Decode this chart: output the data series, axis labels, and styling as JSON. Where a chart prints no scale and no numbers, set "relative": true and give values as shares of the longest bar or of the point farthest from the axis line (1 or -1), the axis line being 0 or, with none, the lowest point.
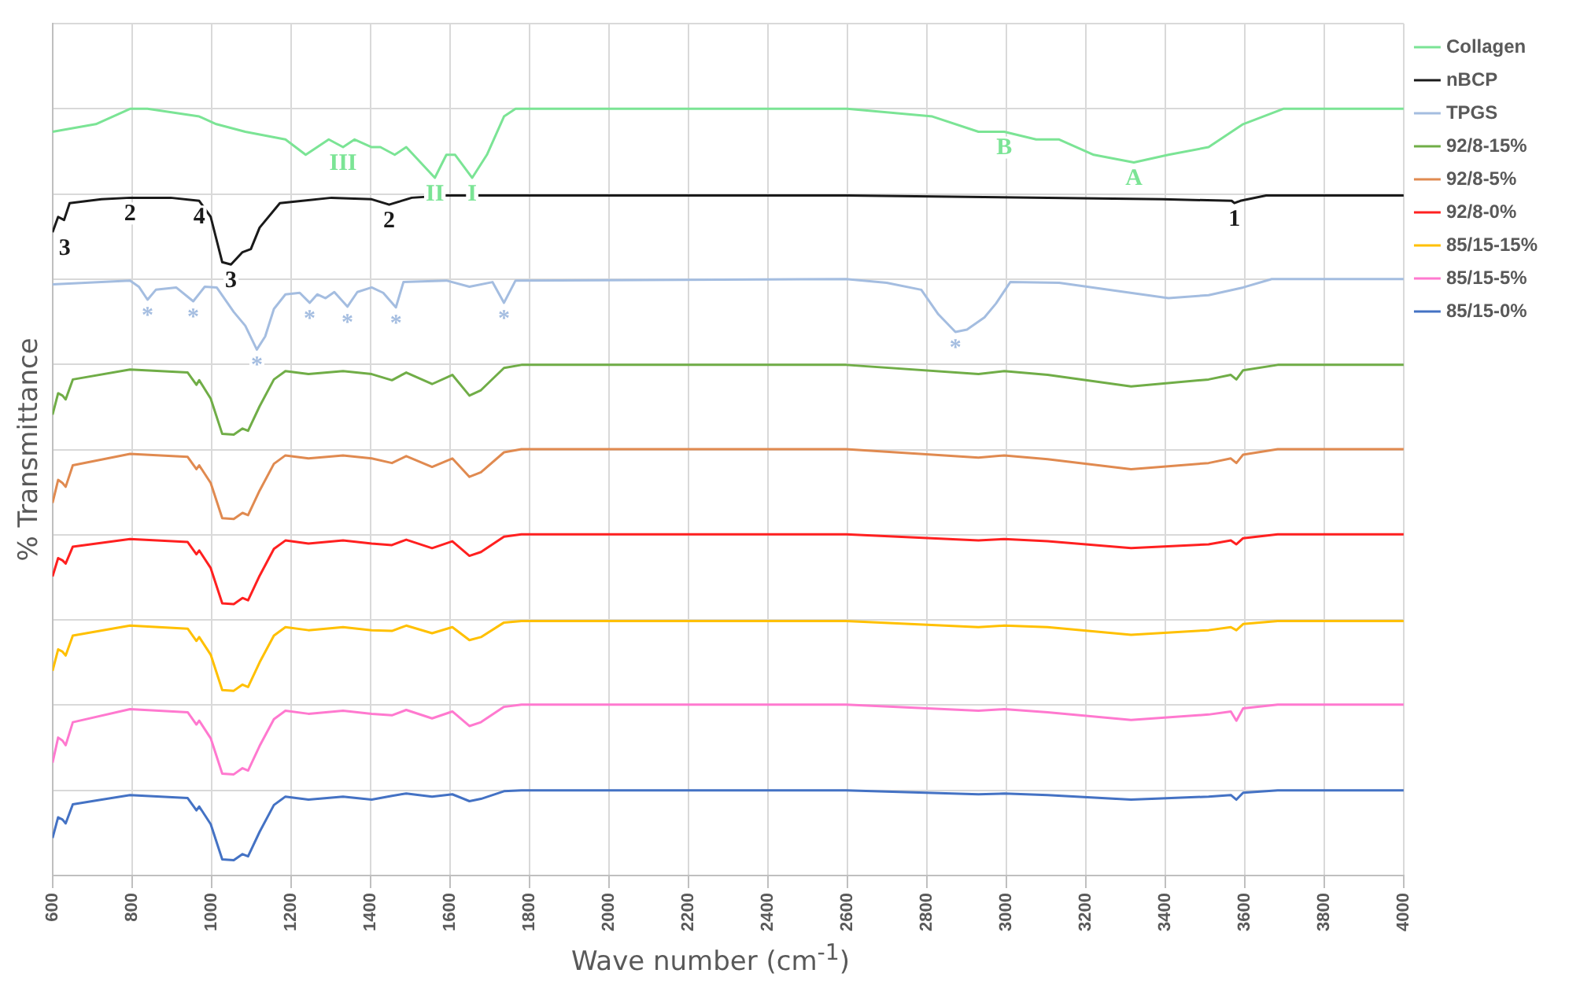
{
  "chart_data": {
    "type": "line",
    "relative": true,
    "xlabel": "Wave number (cm$^{-1}$)",
    "ylabel": "% Transmittance",
    "xlim": [
      600,
      4000
    ],
    "xticks": [
      600,
      800,
      1000,
      1200,
      1400,
      1600,
      1800,
      2000,
      2200,
      2400,
      2600,
      2800,
      3000,
      3200,
      3400,
      3600,
      3800,
      4000
    ],
    "grid": true,
    "legend": "right",
    "marker": "none",
    "line_style": "solid",
    "series": [
      {
        "name": "Collagen",
        "color": "#7be495",
        "x": [
          600,
          709,
          795,
          839,
          969,
          1012,
          1085,
          1186,
          1237,
          1295,
          1331,
          1360,
          1403,
          1425,
          1461,
          1490,
          1562,
          1591,
          1613,
          1656,
          1693,
          1736,
          1765,
          2600,
          2814,
          2930,
          2995,
          3075,
          3133,
          3220,
          3321,
          3408,
          3509,
          3596,
          3697,
          4000
        ],
        "values": [
          0.97,
          0.98,
          1.0,
          1.0,
          0.99,
          0.98,
          0.97,
          0.96,
          0.94,
          0.96,
          0.95,
          0.96,
          0.95,
          0.95,
          0.94,
          0.95,
          0.91,
          0.94,
          0.94,
          0.91,
          0.94,
          0.99,
          1.0,
          1.0,
          0.99,
          0.97,
          0.97,
          0.96,
          0.96,
          0.94,
          0.93,
          0.94,
          0.95,
          0.98,
          1.0,
          1.0
        ]
      },
      {
        "name": "nBCP",
        "color": "#1a1a1a",
        "x": [
          600,
          614,
          629,
          643,
          723,
          795,
          897,
          969,
          998,
          1027,
          1049,
          1078,
          1099,
          1121,
          1172,
          1302,
          1403,
          1447,
          1504,
          1591,
          2600,
          3393,
          3567,
          3574,
          3589,
          3654,
          4000
        ],
        "values": [
          0.839,
          0.859,
          0.855,
          0.877,
          0.882,
          0.884,
          0.884,
          0.88,
          0.859,
          0.8,
          0.797,
          0.813,
          0.817,
          0.845,
          0.877,
          0.884,
          0.882,
          0.875,
          0.884,
          0.887,
          0.887,
          0.882,
          0.88,
          0.877,
          0.88,
          0.887,
          0.887
        ]
      },
      {
        "name": "TPGS",
        "color": "#a4bde0",
        "x": [
          600,
          795,
          817,
          839,
          860,
          911,
          954,
          983,
          1013,
          1056,
          1085,
          1114,
          1135,
          1157,
          1186,
          1222,
          1247,
          1266,
          1287,
          1309,
          1342,
          1367,
          1403,
          1432,
          1464,
          1483,
          1591,
          1649,
          1707,
          1736,
          1765,
          2597,
          2699,
          2786,
          2829,
          2872,
          2901,
          2945,
          2974,
          3010,
          3133,
          3408,
          3509,
          3596,
          3668,
          4000
        ],
        "values": [
          0.771,
          0.776,
          0.768,
          0.751,
          0.764,
          0.767,
          0.749,
          0.768,
          0.767,
          0.735,
          0.717,
          0.686,
          0.703,
          0.739,
          0.758,
          0.76,
          0.747,
          0.758,
          0.753,
          0.761,
          0.742,
          0.761,
          0.767,
          0.76,
          0.741,
          0.774,
          0.776,
          0.768,
          0.774,
          0.747,
          0.776,
          0.778,
          0.773,
          0.764,
          0.732,
          0.709,
          0.712,
          0.728,
          0.746,
          0.774,
          0.773,
          0.753,
          0.757,
          0.767,
          0.778,
          0.778
        ]
      },
      {
        "name": "92/8-15%",
        "color": "#70ad47",
        "x": [
          600,
          614,
          625,
          633,
          651,
          795,
          940,
          962,
          969,
          998,
          1027,
          1056,
          1078,
          1092,
          1121,
          1157,
          1186,
          1244,
          1331,
          1403,
          1454,
          1490,
          1555,
          1606,
          1649,
          1678,
          1736,
          1780,
          2597,
          2930,
          2995,
          3104,
          3314,
          3509,
          3565,
          3579,
          3596,
          3683,
          4000
        ],
        "values": [
          0.601,
          0.629,
          0.626,
          0.621,
          0.647,
          0.66,
          0.656,
          0.64,
          0.646,
          0.622,
          0.576,
          0.575,
          0.583,
          0.58,
          0.612,
          0.647,
          0.658,
          0.654,
          0.658,
          0.654,
          0.646,
          0.656,
          0.641,
          0.653,
          0.626,
          0.633,
          0.662,
          0.666,
          0.666,
          0.654,
          0.658,
          0.653,
          0.638,
          0.647,
          0.653,
          0.647,
          0.659,
          0.666,
          0.666
        ]
      },
      {
        "name": "92/8-5%",
        "color": "#e08a50",
        "x": [
          600,
          614,
          625,
          633,
          651,
          795,
          940,
          962,
          969,
          998,
          1027,
          1056,
          1078,
          1092,
          1121,
          1157,
          1186,
          1244,
          1331,
          1403,
          1454,
          1490,
          1555,
          1606,
          1649,
          1678,
          1736,
          1780,
          2597,
          2930,
          2995,
          3104,
          3314,
          3509,
          3565,
          3579,
          3596,
          3683,
          4000
        ],
        "values": [
          0.486,
          0.516,
          0.512,
          0.507,
          0.535,
          0.55,
          0.546,
          0.53,
          0.535,
          0.512,
          0.466,
          0.465,
          0.473,
          0.47,
          0.502,
          0.537,
          0.548,
          0.544,
          0.548,
          0.544,
          0.538,
          0.547,
          0.533,
          0.544,
          0.52,
          0.526,
          0.552,
          0.556,
          0.556,
          0.545,
          0.548,
          0.543,
          0.53,
          0.538,
          0.544,
          0.538,
          0.549,
          0.556,
          0.556
        ]
      },
      {
        "name": "92/8-0%",
        "color": "#ff2020",
        "x": [
          600,
          614,
          625,
          633,
          651,
          795,
          940,
          962,
          969,
          998,
          1027,
          1056,
          1078,
          1092,
          1121,
          1157,
          1186,
          1244,
          1331,
          1403,
          1454,
          1490,
          1555,
          1606,
          1649,
          1678,
          1736,
          1780,
          2597,
          2930,
          2995,
          3104,
          3314,
          3509,
          3565,
          3579,
          3596,
          3683,
          4000
        ],
        "values": [
          0.39,
          0.414,
          0.411,
          0.407,
          0.429,
          0.439,
          0.435,
          0.419,
          0.424,
          0.401,
          0.355,
          0.354,
          0.362,
          0.359,
          0.391,
          0.426,
          0.437,
          0.433,
          0.437,
          0.433,
          0.431,
          0.438,
          0.427,
          0.436,
          0.417,
          0.422,
          0.442,
          0.445,
          0.445,
          0.437,
          0.439,
          0.436,
          0.427,
          0.432,
          0.437,
          0.432,
          0.44,
          0.445,
          0.445
        ]
      },
      {
        "name": "85/15-15%",
        "color": "#ffc000",
        "x": [
          600,
          614,
          625,
          633,
          651,
          795,
          940,
          962,
          969,
          998,
          1027,
          1056,
          1078,
          1092,
          1121,
          1157,
          1186,
          1244,
          1331,
          1403,
          1454,
          1490,
          1555,
          1606,
          1649,
          1678,
          1736,
          1780,
          2597,
          2930,
          2995,
          3104,
          3314,
          3509,
          3565,
          3579,
          3596,
          3683,
          4000
        ],
        "values": [
          0.267,
          0.295,
          0.292,
          0.287,
          0.313,
          0.326,
          0.322,
          0.306,
          0.311,
          0.288,
          0.242,
          0.241,
          0.249,
          0.246,
          0.278,
          0.313,
          0.324,
          0.32,
          0.324,
          0.32,
          0.319,
          0.326,
          0.316,
          0.324,
          0.307,
          0.311,
          0.33,
          0.332,
          0.332,
          0.324,
          0.326,
          0.324,
          0.314,
          0.32,
          0.324,
          0.32,
          0.328,
          0.332,
          0.332
        ]
      },
      {
        "name": "85/15-5%",
        "color": "#ff79cf",
        "x": [
          600,
          614,
          625,
          633,
          651,
          795,
          940,
          962,
          969,
          998,
          1027,
          1056,
          1078,
          1092,
          1121,
          1157,
          1186,
          1244,
          1331,
          1403,
          1454,
          1490,
          1555,
          1606,
          1649,
          1678,
          1736,
          1780,
          2597,
          2930,
          2995,
          3104,
          3314,
          3509,
          3565,
          3579,
          3596,
          3683,
          4000
        ],
        "values": [
          0.147,
          0.18,
          0.176,
          0.17,
          0.2,
          0.217,
          0.213,
          0.197,
          0.202,
          0.179,
          0.133,
          0.132,
          0.14,
          0.137,
          0.169,
          0.204,
          0.215,
          0.211,
          0.215,
          0.211,
          0.209,
          0.216,
          0.205,
          0.214,
          0.195,
          0.2,
          0.22,
          0.223,
          0.223,
          0.215,
          0.217,
          0.213,
          0.203,
          0.21,
          0.214,
          0.202,
          0.218,
          0.223,
          0.223
        ]
      },
      {
        "name": "85/15-0%",
        "color": "#4472c4",
        "x": [
          600,
          614,
          625,
          633,
          651,
          795,
          940,
          962,
          969,
          998,
          1027,
          1056,
          1078,
          1092,
          1121,
          1157,
          1186,
          1244,
          1331,
          1403,
          1454,
          1490,
          1555,
          1606,
          1649,
          1678,
          1736,
          1780,
          2597,
          2930,
          2995,
          3104,
          3314,
          3509,
          3565,
          3579,
          3596,
          3683,
          4000
        ],
        "values": [
          0.049,
          0.076,
          0.073,
          0.068,
          0.093,
          0.105,
          0.101,
          0.085,
          0.09,
          0.067,
          0.021,
          0.02,
          0.028,
          0.025,
          0.057,
          0.092,
          0.103,
          0.099,
          0.103,
          0.099,
          0.104,
          0.107,
          0.103,
          0.106,
          0.097,
          0.1,
          0.11,
          0.111,
          0.111,
          0.106,
          0.107,
          0.105,
          0.099,
          0.103,
          0.105,
          0.099,
          0.108,
          0.111,
          0.111
        ]
      }
    ],
    "annotations": [
      {
        "text": "III",
        "x": 1331,
        "y": 0.95
      },
      {
        "text": "II",
        "x": 1562,
        "y": 0.91
      },
      {
        "text": "I",
        "x": 1656,
        "y": 0.91
      },
      {
        "text": "B",
        "x": 2995,
        "y": 0.97
      },
      {
        "text": "A",
        "x": 3321,
        "y": 0.93
      },
      {
        "text": "3",
        "x": 600,
        "y": 0.839
      },
      {
        "text": "2",
        "x": 795,
        "y": 0.884
      },
      {
        "text": "4",
        "x": 969,
        "y": 0.88
      },
      {
        "text": "3",
        "x": 1049,
        "y": 0.797
      },
      {
        "text": "2",
        "x": 1447,
        "y": 0.875
      },
      {
        "text": "1",
        "x": 3574,
        "y": 0.877
      },
      {
        "text": "*",
        "x": 839,
        "y": 0.751
      },
      {
        "text": "*",
        "x": 954,
        "y": 0.749
      },
      {
        "text": "*",
        "x": 1114,
        "y": 0.686
      },
      {
        "text": "*",
        "x": 1247,
        "y": 0.747
      },
      {
        "text": "*",
        "x": 1342,
        "y": 0.742
      },
      {
        "text": "*",
        "x": 1464,
        "y": 0.741
      },
      {
        "text": "*",
        "x": 1736,
        "y": 0.747
      },
      {
        "text": "*",
        "x": 2872,
        "y": 0.709
      }
    ]
  }
}
